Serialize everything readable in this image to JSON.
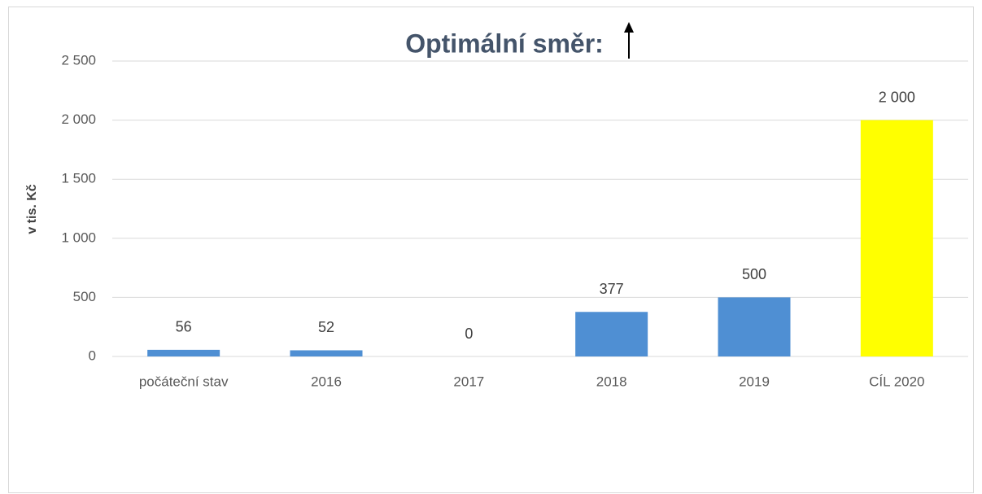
{
  "chart_data": {
    "type": "bar",
    "title": "Optimální směr:",
    "y_label": "v tis. Kč",
    "categories": [
      "počáteční stav",
      "2016",
      "2017",
      "2018",
      "2019",
      "CÍL 2020"
    ],
    "values": [
      56,
      52,
      0,
      377,
      500,
      2000
    ],
    "value_labels": [
      "56",
      "52",
      "0",
      "377",
      "500",
      "2 000"
    ],
    "colors": [
      "#4f8fd3",
      "#4f8fd3",
      "#4f8fd3",
      "#4f8fd3",
      "#4f8fd3",
      "#ffff00"
    ],
    "ylim": [
      0,
      2500
    ],
    "yticks": [
      0,
      500,
      {
        "value": 1000,
        "label": "1 000"
      },
      {
        "value": 1500,
        "label": "1 500"
      },
      {
        "value": 2000,
        "label": "2 000"
      },
      {
        "value": 2500,
        "label": "2 500"
      }
    ],
    "grid": true
  }
}
